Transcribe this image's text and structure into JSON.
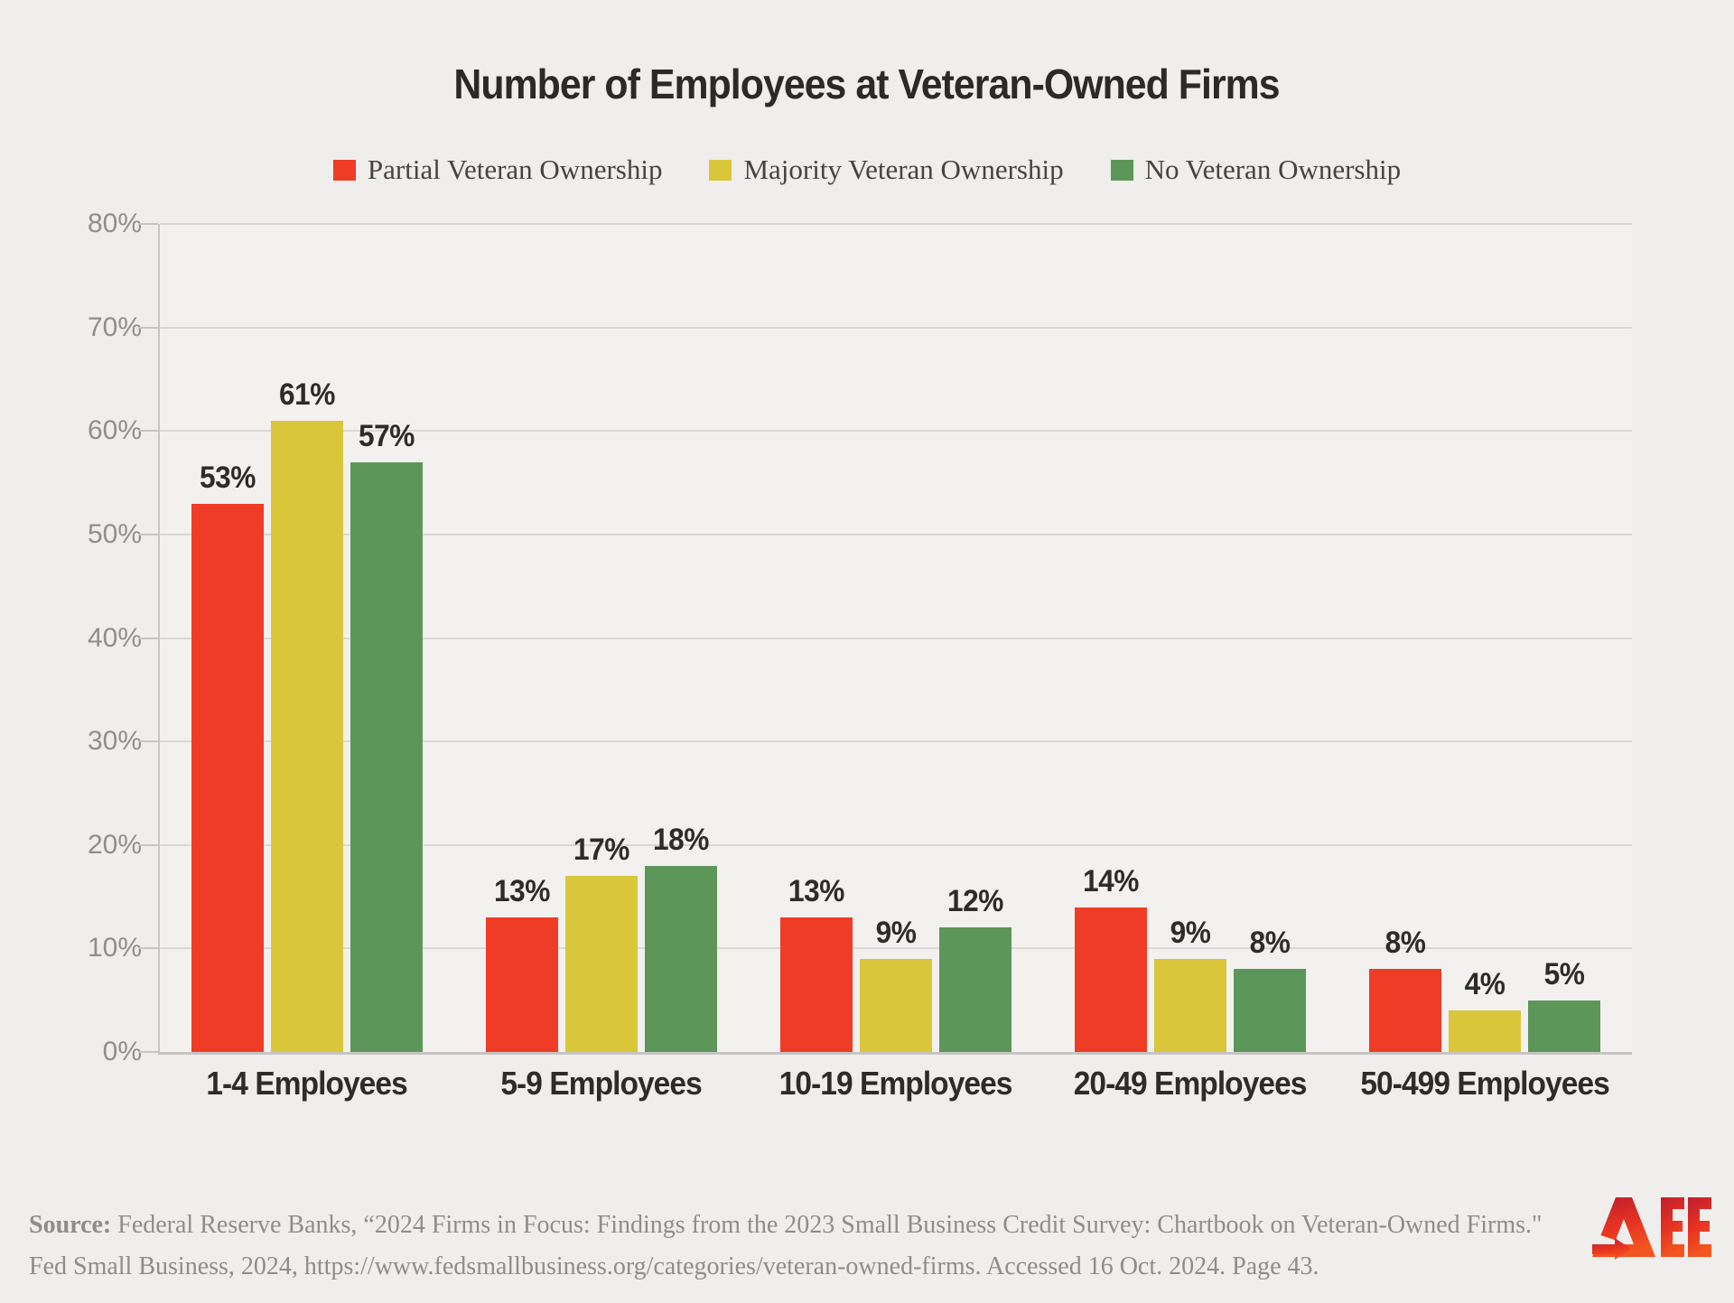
{
  "page": {
    "background": "#efeeec",
    "plot_background": "#f2f1ef"
  },
  "title": "Number of Employees at Veteran-Owned Firms",
  "legend": [
    {
      "label": "Partial Veteran Ownership",
      "color": "#ee3c26"
    },
    {
      "label": "Majority Veteran Ownership",
      "color": "#d9c63b"
    },
    {
      "label": "No Veteran Ownership",
      "color": "#5c9659"
    }
  ],
  "chart_data": {
    "type": "bar",
    "title": "Number of Employees at Veteran-Owned Firms",
    "categories": [
      "1-4 Employees",
      "5-9 Employees",
      "10-19 Employees",
      "20-49 Employees",
      "50-499 Employees"
    ],
    "series": [
      {
        "name": "Partial Veteran Ownership",
        "color": "#ee3c26",
        "values": [
          53,
          13,
          13,
          14,
          8
        ]
      },
      {
        "name": "Majority Veteran Ownership",
        "color": "#d9c63b",
        "values": [
          61,
          17,
          9,
          9,
          4
        ]
      },
      {
        "name": "No Veteran Ownership",
        "color": "#5c9659",
        "values": [
          57,
          18,
          12,
          8,
          5
        ]
      }
    ],
    "value_suffix": "%",
    "ylim": [
      0,
      80
    ],
    "yticks": [
      "80%",
      "70%",
      "60%",
      "50%",
      "40%",
      "30%",
      "20%",
      "10%",
      "0%"
    ],
    "grid": true,
    "legend_position": "top",
    "xlabel": "",
    "ylabel": ""
  },
  "source": {
    "prefix": "Source:",
    "line1_rest": " Federal Reserve Banks, “2024 Firms in Focus: Findings from the 2023 Small Business Credit Survey: Chartbook on Veteran-Owned Firms.\"",
    "line2": "Fed Small Business, 2024, https://www.fedsmallbusiness.org/categories/veteran-owned-firms. Accessed 16 Oct. 2024. Page 43."
  },
  "logo": {
    "alt": "AEE",
    "color_top": "#c01d2f",
    "color_bottom": "#f3551f"
  }
}
